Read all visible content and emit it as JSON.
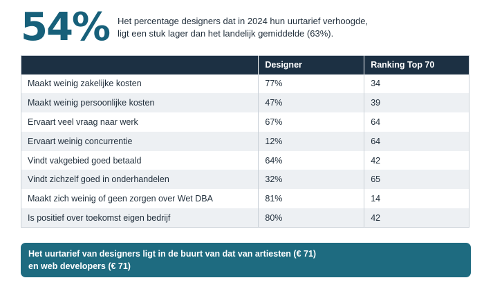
{
  "hero": {
    "stat": "54%",
    "text_line1": "Het percentage designers dat in 2024 hun uurtarief verhoogde,",
    "text_line2": "ligt een stuk lager dan het landelijk gemiddelde (63%)."
  },
  "table": {
    "headers": [
      "",
      "Designer",
      "Ranking Top 70"
    ],
    "rows": [
      [
        "Maakt weinig zakelijke kosten",
        "77%",
        "34"
      ],
      [
        "Maakt weinig persoonlijke kosten",
        "47%",
        "39"
      ],
      [
        "Ervaart veel vraag naar werk",
        "67%",
        "64"
      ],
      [
        "Ervaart weinig concurrentie",
        "12%",
        "64"
      ],
      [
        "Vindt vakgebied goed betaald",
        "64%",
        "42"
      ],
      [
        "Vindt zichzelf goed in onderhandelen",
        "32%",
        "65"
      ],
      [
        "Maakt zich weinig of geen zorgen over Wet DBA",
        "81%",
        "14"
      ],
      [
        "Is positief over toekomst eigen bedrijf",
        "80%",
        "42"
      ]
    ]
  },
  "banner": {
    "line1": "Het uurtarief van designers ligt in de buurt van dat van artiesten (€ 71)",
    "line2": "en web developers (€ 71)"
  },
  "colors": {
    "accent": "#17607a",
    "header_bg": "#1c3043",
    "banner_bg": "#1e6b80",
    "row_alt": "#edf0f3"
  }
}
